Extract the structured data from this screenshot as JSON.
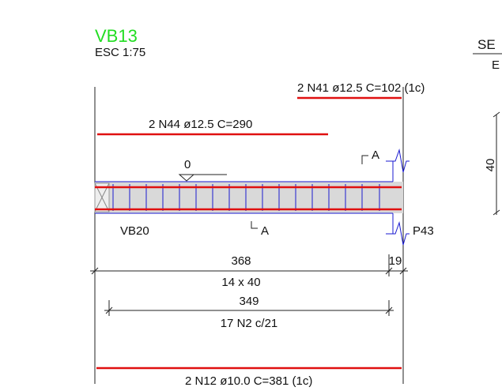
{
  "title": "VB13",
  "scale": "ESC 1:75",
  "bars": {
    "top_short": "2 N41 ø12.5 C=102 (1c)",
    "top_long": "2 N44 ø12.5 C=290",
    "bottom": "2 N12 ø10.0 C=381 (1c)"
  },
  "level": "0",
  "section_mark_top": "A",
  "section_mark_bottom": "A",
  "support_left": "VB20",
  "support_right": "P43",
  "dimensions": {
    "span": "368",
    "support": "19",
    "section": "14 x 40",
    "stirrup_length": "349",
    "stirrups": "17 N2 c/21"
  },
  "section_view": {
    "title": "SE",
    "subtitle": "E",
    "height": "40"
  }
}
